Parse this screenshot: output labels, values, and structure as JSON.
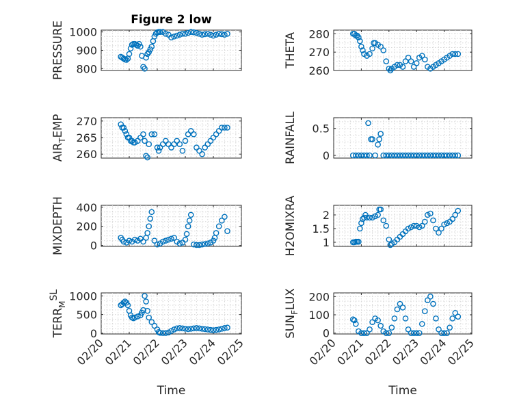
{
  "figure": {
    "title": "Figure 2 low"
  },
  "colors": {
    "marker": "#0072BD",
    "axis": "#262626",
    "grid": "#d6d6d6"
  },
  "chart_data": [
    {
      "type": "scatter",
      "title": "Figure 2 low",
      "ylabel": "PRESSURE",
      "ylabel_sub": "",
      "ylim": [
        790,
        1010
      ],
      "yticks": [
        800,
        900,
        1000
      ],
      "xlim": [
        0,
        5
      ],
      "xtick_labels": [
        "02/20",
        "02/21",
        "02/22",
        "02/23",
        "02/24",
        "02/25"
      ],
      "xlabel": "",
      "x": [
        0.7,
        0.75,
        0.8,
        0.85,
        0.9,
        0.95,
        1.0,
        1.05,
        1.1,
        1.15,
        1.2,
        1.25,
        1.3,
        1.35,
        1.4,
        1.45,
        1.5,
        1.55,
        1.6,
        1.65,
        1.7,
        1.75,
        1.8,
        1.85,
        1.9,
        1.95,
        2.0,
        2.05,
        2.1,
        2.2,
        2.3,
        2.4,
        2.5,
        2.6,
        2.7,
        2.8,
        2.9,
        3.0,
        3.1,
        3.2,
        3.3,
        3.4,
        3.5,
        3.6,
        3.7,
        3.8,
        3.9,
        4.0,
        4.1,
        4.2,
        4.3,
        4.4,
        4.5
      ],
      "y": [
        865,
        860,
        855,
        850,
        848,
        855,
        880,
        910,
        930,
        935,
        935,
        930,
        925,
        935,
        920,
        870,
        810,
        800,
        860,
        880,
        890,
        905,
        920,
        950,
        975,
        990,
        998,
        1000,
        1000,
        1000,
        990,
        985,
        970,
        975,
        980,
        985,
        990,
        990,
        995,
        1000,
        998,
        995,
        990,
        985,
        988,
        990,
        985,
        980,
        985,
        990,
        988,
        985,
        990
      ]
    },
    {
      "type": "scatter",
      "ylabel": "THETA",
      "ylabel_sub": "",
      "ylim": [
        260,
        282
      ],
      "yticks": [
        260,
        270,
        280
      ],
      "xlim": [
        0,
        5
      ],
      "xtick_labels": [
        "02/20",
        "02/21",
        "02/22",
        "02/23",
        "02/24",
        "02/25"
      ],
      "xlabel": "",
      "x": [
        0.7,
        0.75,
        0.8,
        0.85,
        0.9,
        0.95,
        1.0,
        1.05,
        1.1,
        1.2,
        1.3,
        1.4,
        1.45,
        1.5,
        1.6,
        1.7,
        1.8,
        1.9,
        2.0,
        2.05,
        2.1,
        2.2,
        2.3,
        2.4,
        2.5,
        2.6,
        2.7,
        2.8,
        2.9,
        3.0,
        3.1,
        3.2,
        3.3,
        3.4,
        3.5,
        3.6,
        3.7,
        3.8,
        3.9,
        4.0,
        4.1,
        4.2,
        4.3,
        4.4,
        4.5
      ],
      "y": [
        280,
        280,
        279,
        279,
        278,
        276,
        273,
        271,
        269,
        268,
        269,
        272,
        275,
        275,
        274,
        273,
        271,
        265,
        261,
        260,
        261,
        262,
        263,
        263,
        262,
        265,
        267,
        265,
        262,
        264,
        267,
        268,
        266,
        262,
        261,
        262,
        263,
        264,
        265,
        266,
        267,
        268,
        269,
        269,
        269
      ]
    },
    {
      "type": "scatter",
      "ylabel": "AIR",
      "ylabel_sub": "T",
      "ylabel_after": "EMP",
      "ylim": [
        258.8,
        271
      ],
      "yticks": [
        260,
        265,
        270
      ],
      "xlim": [
        0,
        5
      ],
      "xtick_labels": [
        "02/20",
        "02/21",
        "02/22",
        "02/23",
        "02/24",
        "02/25"
      ],
      "xlabel": "",
      "x": [
        0.7,
        0.75,
        0.8,
        0.85,
        0.9,
        0.95,
        1.0,
        1.05,
        1.1,
        1.15,
        1.2,
        1.3,
        1.4,
        1.5,
        1.55,
        1.6,
        1.65,
        1.7,
        1.8,
        1.9,
        2.0,
        2.05,
        2.1,
        2.2,
        2.3,
        2.4,
        2.5,
        2.6,
        2.7,
        2.8,
        2.9,
        3.0,
        3.1,
        3.2,
        3.3,
        3.4,
        3.5,
        3.6,
        3.7,
        3.8,
        3.9,
        4.0,
        4.1,
        4.2,
        4.3,
        4.4,
        4.5
      ],
      "y": [
        269,
        268,
        268,
        267,
        266,
        265,
        265,
        264,
        264,
        263.5,
        263.5,
        264,
        265,
        266,
        264,
        259.5,
        259,
        263,
        266,
        266,
        262,
        261,
        262,
        263,
        264,
        263,
        262,
        263,
        264,
        263,
        261,
        264,
        266,
        267,
        266,
        262,
        261,
        260,
        262,
        263,
        264,
        265,
        266,
        267,
        268,
        268,
        268
      ]
    },
    {
      "type": "scatter",
      "ylabel": "RAINFALL",
      "ylabel_sub": "",
      "ylim": [
        -0.05,
        0.7
      ],
      "yticks": [
        0,
        0.5
      ],
      "xlim": [
        0,
        5
      ],
      "xtick_labels": [
        "02/20",
        "02/21",
        "02/22",
        "02/23",
        "02/24",
        "02/25"
      ],
      "xlabel": "",
      "x": [
        0.7,
        0.8,
        0.9,
        1.0,
        1.1,
        1.2,
        1.25,
        1.3,
        1.35,
        1.4,
        1.5,
        1.6,
        1.65,
        1.7,
        1.8,
        1.9,
        2.0,
        2.1,
        2.2,
        2.3,
        2.4,
        2.5,
        2.6,
        2.7,
        2.8,
        2.9,
        3.0,
        3.1,
        3.2,
        3.3,
        3.4,
        3.5,
        3.6,
        3.7,
        3.8,
        3.9,
        4.0,
        4.1,
        4.2,
        4.3,
        4.4,
        4.5
      ],
      "y": [
        0,
        0,
        0,
        0,
        0,
        0,
        0.6,
        0,
        0.3,
        0.3,
        0,
        0.2,
        0.3,
        0.4,
        0,
        0,
        0,
        0,
        0,
        0,
        0,
        0,
        0,
        0,
        0,
        0,
        0,
        0,
        0,
        0,
        0,
        0,
        0,
        0,
        0,
        0,
        0,
        0,
        0,
        0,
        0,
        0
      ]
    },
    {
      "type": "scatter",
      "ylabel": "MIXDEPTH",
      "ylabel_sub": "",
      "ylim": [
        -10,
        420
      ],
      "yticks": [
        0,
        200,
        400
      ],
      "xlim": [
        0,
        5
      ],
      "xtick_labels": [
        "02/20",
        "02/21",
        "02/22",
        "02/23",
        "02/24",
        "02/25"
      ],
      "xlabel": "",
      "x": [
        0.7,
        0.75,
        0.8,
        0.9,
        1.0,
        1.1,
        1.2,
        1.3,
        1.4,
        1.5,
        1.6,
        1.65,
        1.7,
        1.75,
        1.8,
        1.9,
        2.0,
        2.1,
        2.2,
        2.3,
        2.4,
        2.5,
        2.6,
        2.7,
        2.8,
        2.9,
        3.0,
        3.05,
        3.1,
        3.15,
        3.2,
        3.3,
        3.4,
        3.5,
        3.6,
        3.7,
        3.8,
        3.9,
        4.0,
        4.05,
        4.1,
        4.2,
        4.3,
        4.4,
        4.5
      ],
      "y": [
        80,
        60,
        40,
        30,
        50,
        40,
        60,
        50,
        70,
        40,
        80,
        130,
        200,
        280,
        350,
        50,
        10,
        20,
        40,
        50,
        60,
        70,
        80,
        40,
        20,
        30,
        60,
        120,
        200,
        260,
        320,
        10,
        5,
        5,
        10,
        15,
        20,
        30,
        50,
        80,
        130,
        200,
        260,
        300,
        150
      ]
    },
    {
      "type": "scatter",
      "ylabel": "H2OMIXRA",
      "ylabel_sub": "",
      "ylim": [
        0.85,
        2.35
      ],
      "yticks": [
        1,
        1.5,
        2
      ],
      "xlim": [
        0,
        5
      ],
      "xtick_labels": [
        "02/20",
        "02/21",
        "02/22",
        "02/23",
        "02/24",
        "02/25"
      ],
      "xlabel": "",
      "x": [
        0.7,
        0.75,
        0.8,
        0.85,
        0.9,
        0.95,
        1.0,
        1.05,
        1.1,
        1.15,
        1.2,
        1.3,
        1.4,
        1.5,
        1.6,
        1.65,
        1.7,
        1.8,
        1.9,
        2.0,
        2.05,
        2.1,
        2.2,
        2.3,
        2.4,
        2.5,
        2.6,
        2.7,
        2.8,
        2.9,
        3.0,
        3.1,
        3.2,
        3.3,
        3.4,
        3.5,
        3.6,
        3.7,
        3.8,
        3.9,
        4.0,
        4.1,
        4.2,
        4.3,
        4.4,
        4.5
      ],
      "y": [
        1,
        1,
        1.02,
        1.02,
        1.02,
        1.5,
        1.7,
        1.85,
        1.9,
        2.0,
        1.9,
        1.9,
        1.9,
        1.95,
        2.0,
        2.2,
        2.2,
        1.8,
        1.6,
        1.1,
        0.9,
        0.95,
        1.0,
        1.1,
        1.2,
        1.3,
        1.4,
        1.5,
        1.55,
        1.6,
        1.6,
        1.55,
        1.6,
        1.75,
        2.0,
        2.05,
        1.8,
        1.5,
        1.35,
        1.5,
        1.65,
        1.7,
        1.75,
        1.85,
        2.0,
        2.15
      ]
    },
    {
      "type": "scatter",
      "ylabel": "TERR",
      "ylabel_sub": "M",
      "ylabel_sup": "SL",
      "ylim": [
        -20,
        1080
      ],
      "yticks": [
        0,
        500,
        1000
      ],
      "xlim": [
        0,
        5
      ],
      "xtick_labels": [
        "02/20",
        "02/21",
        "02/22",
        "02/23",
        "02/24",
        "02/25"
      ],
      "xlabel": "Time",
      "x": [
        0.7,
        0.75,
        0.8,
        0.85,
        0.9,
        0.95,
        1.0,
        1.05,
        1.1,
        1.15,
        1.2,
        1.3,
        1.4,
        1.45,
        1.5,
        1.55,
        1.6,
        1.65,
        1.7,
        1.8,
        1.9,
        2.0,
        2.05,
        2.1,
        2.2,
        2.3,
        2.4,
        2.5,
        2.6,
        2.7,
        2.8,
        2.9,
        3.0,
        3.1,
        3.2,
        3.3,
        3.4,
        3.5,
        3.6,
        3.7,
        3.8,
        3.9,
        4.0,
        4.1,
        4.2,
        4.3,
        4.4,
        4.5
      ],
      "y": [
        750,
        780,
        820,
        850,
        820,
        750,
        600,
        480,
        420,
        400,
        420,
        450,
        480,
        550,
        620,
        1000,
        850,
        600,
        420,
        300,
        200,
        100,
        30,
        10,
        5,
        5,
        20,
        60,
        100,
        130,
        140,
        130,
        120,
        110,
        120,
        130,
        140,
        130,
        120,
        110,
        100,
        90,
        80,
        90,
        100,
        120,
        140,
        150
      ]
    },
    {
      "type": "scatter",
      "ylabel": "SUN",
      "ylabel_sub": "F",
      "ylabel_after": "LUX",
      "ylim": [
        -5,
        220
      ],
      "yticks": [
        0,
        100,
        200
      ],
      "xlim": [
        0,
        5
      ],
      "xtick_labels": [
        "02/20",
        "02/21",
        "02/22",
        "02/23",
        "02/24",
        "02/25"
      ],
      "xlabel": "Time",
      "x": [
        0.7,
        0.75,
        0.8,
        0.9,
        1.0,
        1.1,
        1.2,
        1.3,
        1.4,
        1.5,
        1.6,
        1.7,
        1.8,
        1.9,
        2.0,
        2.1,
        2.2,
        2.3,
        2.4,
        2.5,
        2.6,
        2.7,
        2.8,
        2.9,
        3.0,
        3.1,
        3.2,
        3.3,
        3.4,
        3.5,
        3.6,
        3.7,
        3.8,
        3.9,
        4.0,
        4.1,
        4.2,
        4.3,
        4.4,
        4.5
      ],
      "y": [
        75,
        70,
        50,
        10,
        0,
        0,
        0,
        20,
        60,
        80,
        70,
        40,
        10,
        0,
        0,
        30,
        80,
        130,
        160,
        140,
        80,
        20,
        0,
        0,
        0,
        0,
        50,
        120,
        180,
        200,
        160,
        80,
        20,
        0,
        0,
        0,
        30,
        80,
        110,
        90
      ]
    }
  ]
}
